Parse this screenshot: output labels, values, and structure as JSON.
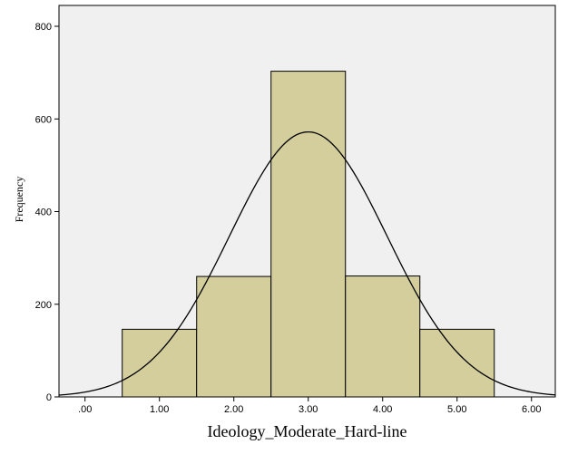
{
  "chart_data": {
    "type": "bar",
    "subtype": "histogram",
    "xlabel": "Ideology_Moderate_Hard-line",
    "ylabel": "Frequency",
    "x_tick_labels": [
      ".00",
      "1.00",
      "2.00",
      "3.00",
      "4.00",
      "5.00",
      "6.00"
    ],
    "x_ticks": [
      0,
      1,
      2,
      3,
      4,
      5,
      6
    ],
    "y_tick_labels": [
      "0",
      "200",
      "400",
      "600",
      "800"
    ],
    "y_ticks": [
      0,
      200,
      400,
      600,
      800
    ],
    "xlim": [
      -0.35,
      6.32
    ],
    "ylim": [
      0,
      845
    ],
    "bins": [
      {
        "from": 0.5,
        "to": 1.5,
        "value": 146
      },
      {
        "from": 1.5,
        "to": 2.5,
        "value": 260
      },
      {
        "from": 2.5,
        "to": 3.5,
        "value": 703
      },
      {
        "from": 3.5,
        "to": 4.5,
        "value": 261
      },
      {
        "from": 4.5,
        "to": 5.5,
        "value": 146
      }
    ],
    "normal_curve": {
      "mean": 3.0,
      "std_dev": 1.06,
      "peak": 572
    },
    "grid": false,
    "legend": "none",
    "colors": {
      "plot_background": "#f0f0f0",
      "bar_fill": "#d3ce9c",
      "bar_stroke": "#000000",
      "curve": "#000000"
    }
  }
}
